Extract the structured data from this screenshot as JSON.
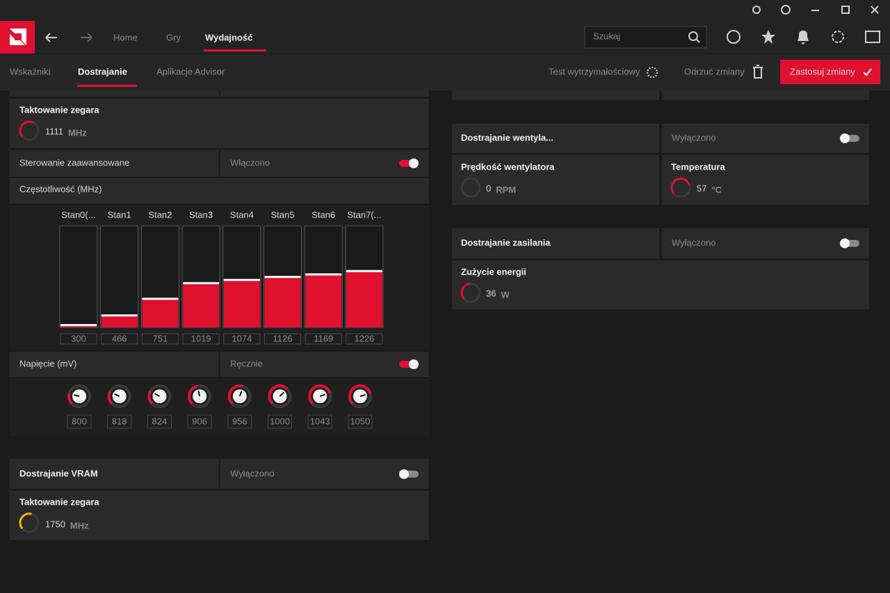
{
  "nav": {
    "items": [
      "Home",
      "Gry",
      "Wydajność"
    ],
    "search": "Szukaj"
  },
  "tabs": {
    "items": [
      "Wskaźniki",
      "Dostrajanie",
      "Aplikacje Advisor"
    ],
    "stress_test": "Test wytrzymałościowy",
    "discard": "Odrzuć zmiany",
    "apply": "Zastosuj zmiany"
  },
  "gpu_tuning": {
    "clock": {
      "label": "Taktowanie zegara",
      "value": 1111,
      "unit": "MHz"
    },
    "advanced_control": {
      "label": "Sterowanie zaawansowane",
      "state": "Włączono"
    },
    "frequency": {
      "label": "Częstotliwość (MHz)",
      "states": [
        "Stan0(...",
        "Stan1",
        "Stan2",
        "Stan3",
        "Stan4",
        "Stan5",
        "Stan6",
        "Stan7(..."
      ],
      "values": [
        300,
        466,
        751,
        1019,
        1074,
        1126,
        1169,
        1226
      ]
    },
    "voltage": {
      "label": "Napięcie (mV)",
      "state": "Ręcznie",
      "values": [
        800,
        818,
        824,
        906,
        956,
        1000,
        1043,
        1050
      ]
    }
  },
  "vram_tuning": {
    "label": "Dostrajanie VRAM",
    "state": "Wyłączono",
    "clock": {
      "label": "Taktowanie zegara",
      "value": 1750,
      "unit": "MHz"
    }
  },
  "fan_tuning": {
    "label": "Dostrajanie wentyla...",
    "state": "Wyłączono",
    "fan_speed": {
      "label": "Prędkość wentylatora",
      "value": 0,
      "unit": "RPM"
    },
    "temperature": {
      "label": "Temperatura",
      "value": 57,
      "unit": "°C"
    }
  },
  "power_tuning": {
    "label": "Dostrajanie zasilania",
    "state": "Wyłączono",
    "power": {
      "label": "Zużycie energii",
      "value": 36,
      "unit": "W"
    }
  }
}
